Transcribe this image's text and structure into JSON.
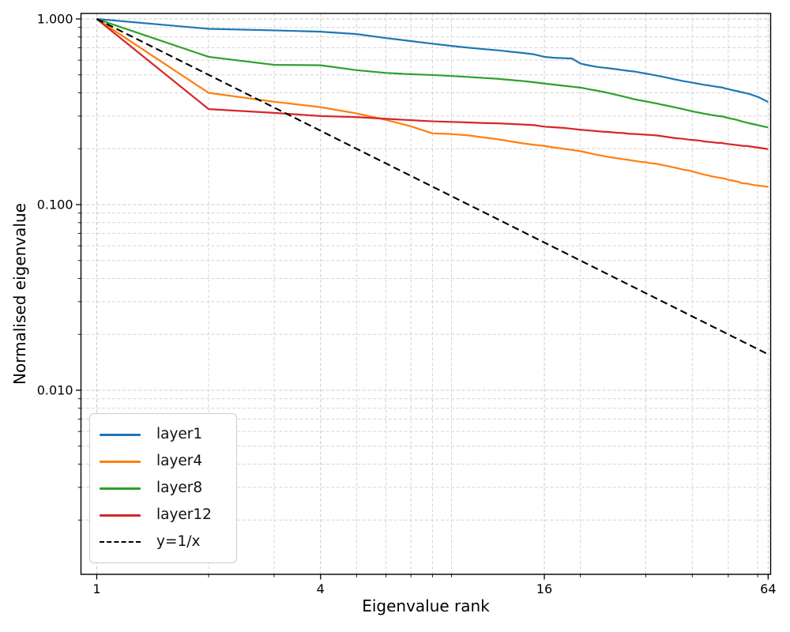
{
  "figure": {
    "xlabel": "Eigenvalue rank",
    "ylabel": "Normalised eigenvalue",
    "background": "#ffffff"
  },
  "axes": {
    "x": {
      "scale": "log",
      "major_ticks": [
        {
          "value": 1,
          "label": "1"
        },
        {
          "value": 4,
          "label": "4"
        },
        {
          "value": 16,
          "label": "16"
        },
        {
          "value": 64,
          "label": "64"
        }
      ],
      "minor_ticks": [
        2,
        3,
        5,
        6,
        7,
        8,
        9,
        20,
        30,
        40,
        50,
        60
      ]
    },
    "y": {
      "scale": "log",
      "major_ticks": [
        {
          "value": 1.0,
          "label": "1.000"
        },
        {
          "value": 0.1,
          "label": "0.100"
        },
        {
          "value": 0.01,
          "label": "0.010"
        }
      ],
      "minor_ticks": [
        0.9,
        0.8,
        0.7,
        0.6,
        0.5,
        0.4,
        0.3,
        0.2,
        0.09,
        0.08,
        0.07,
        0.06,
        0.05,
        0.04,
        0.03,
        0.02,
        0.009,
        0.008,
        0.007,
        0.006,
        0.005,
        0.004,
        0.003,
        0.002
      ]
    },
    "grid_color": "#d4d4d4",
    "spine_color": "#000000"
  },
  "chart_data": {
    "type": "line",
    "title": "",
    "xlabel": "Eigenvalue rank",
    "ylabel": "Normalised eigenvalue",
    "x_scale": "log",
    "y_scale": "log",
    "xlim": [
      0.907,
      65.0
    ],
    "ylim": [
      0.00102,
      1.071
    ],
    "grid": "both, dashed light gray",
    "legend_position": "lower left",
    "x": [
      1,
      2,
      3,
      4,
      5,
      6,
      7,
      8,
      9,
      10,
      11,
      12,
      13,
      14,
      15,
      16,
      17,
      18,
      19,
      20,
      21,
      22,
      23,
      24,
      25,
      26,
      27,
      28,
      29,
      30,
      31,
      32,
      33,
      34,
      35,
      36,
      37,
      38,
      39,
      40,
      41,
      42,
      43,
      44,
      45,
      46,
      47,
      48,
      49,
      50,
      51,
      52,
      53,
      54,
      55,
      56,
      57,
      58,
      59,
      60,
      61,
      62,
      63,
      64
    ],
    "series": [
      {
        "name": "layer1",
        "color": "#1f77b4",
        "dashed": false,
        "values": [
          1.0,
          0.885,
          0.868,
          0.854,
          0.829,
          0.789,
          0.76,
          0.736,
          0.716,
          0.7,
          0.688,
          0.678,
          0.666,
          0.656,
          0.645,
          0.625,
          0.618,
          0.615,
          0.612,
          0.575,
          0.563,
          0.553,
          0.547,
          0.542,
          0.536,
          0.53,
          0.525,
          0.521,
          0.514,
          0.508,
          0.502,
          0.496,
          0.49,
          0.484,
          0.478,
          0.472,
          0.467,
          0.462,
          0.458,
          0.454,
          0.45,
          0.446,
          0.442,
          0.439,
          0.436,
          0.433,
          0.43,
          0.428,
          0.423,
          0.419,
          0.415,
          0.411,
          0.408,
          0.404,
          0.401,
          0.398,
          0.394,
          0.39,
          0.385,
          0.381,
          0.375,
          0.369,
          0.363,
          0.357
        ]
      },
      {
        "name": "layer4",
        "color": "#ff7f0e",
        "dashed": false,
        "values": [
          1.0,
          0.4,
          0.358,
          0.335,
          0.31,
          0.286,
          0.264,
          0.242,
          0.24,
          0.236,
          0.23,
          0.225,
          0.219,
          0.214,
          0.21,
          0.207,
          0.203,
          0.2,
          0.197,
          0.194,
          0.19,
          0.186,
          0.183,
          0.18,
          0.178,
          0.176,
          0.174,
          0.172,
          0.17,
          0.169,
          0.167,
          0.166,
          0.164,
          0.162,
          0.16,
          0.158,
          0.156,
          0.154,
          0.153,
          0.151,
          0.149,
          0.147,
          0.145,
          0.144,
          0.142,
          0.141,
          0.14,
          0.139,
          0.138,
          0.136,
          0.135,
          0.134,
          0.133,
          0.131,
          0.13,
          0.13,
          0.129,
          0.128,
          0.127,
          0.127,
          0.126,
          0.126,
          0.125,
          0.125
        ]
      },
      {
        "name": "layer8",
        "color": "#2ca02c",
        "dashed": false,
        "values": [
          1.0,
          0.625,
          0.566,
          0.563,
          0.53,
          0.512,
          0.504,
          0.499,
          0.493,
          0.487,
          0.481,
          0.476,
          0.469,
          0.463,
          0.456,
          0.449,
          0.443,
          0.437,
          0.432,
          0.427,
          0.419,
          0.412,
          0.405,
          0.398,
          0.39,
          0.383,
          0.376,
          0.369,
          0.364,
          0.36,
          0.355,
          0.351,
          0.346,
          0.342,
          0.338,
          0.334,
          0.33,
          0.326,
          0.322,
          0.318,
          0.315,
          0.312,
          0.309,
          0.307,
          0.304,
          0.302,
          0.3,
          0.299,
          0.296,
          0.293,
          0.29,
          0.288,
          0.285,
          0.282,
          0.279,
          0.277,
          0.274,
          0.272,
          0.27,
          0.268,
          0.266,
          0.264,
          0.262,
          0.261
        ]
      },
      {
        "name": "layer12",
        "color": "#d62728",
        "dashed": false,
        "values": [
          1.0,
          0.327,
          0.312,
          0.3,
          0.296,
          0.29,
          0.285,
          0.281,
          0.279,
          0.277,
          0.275,
          0.274,
          0.272,
          0.27,
          0.268,
          0.263,
          0.261,
          0.259,
          0.256,
          0.253,
          0.251,
          0.249,
          0.247,
          0.246,
          0.244,
          0.243,
          0.241,
          0.24,
          0.239,
          0.238,
          0.237,
          0.236,
          0.234,
          0.232,
          0.23,
          0.228,
          0.227,
          0.226,
          0.224,
          0.223,
          0.222,
          0.221,
          0.219,
          0.218,
          0.217,
          0.216,
          0.215,
          0.215,
          0.213,
          0.212,
          0.211,
          0.21,
          0.209,
          0.208,
          0.207,
          0.207,
          0.206,
          0.205,
          0.204,
          0.203,
          0.202,
          0.201,
          0.2,
          0.199
        ]
      },
      {
        "name": "y=1/x",
        "color": "#000000",
        "dashed": true,
        "values": [
          1.0,
          0.5,
          0.33333,
          0.25,
          0.2,
          0.16667,
          0.14286,
          0.125,
          0.11111,
          0.1,
          0.09091,
          0.08333,
          0.07692,
          0.07143,
          0.06667,
          0.0625,
          0.05882,
          0.05556,
          0.05263,
          0.05,
          0.04762,
          0.04545,
          0.04348,
          0.04167,
          0.04,
          0.03846,
          0.03704,
          0.03571,
          0.03448,
          0.03333,
          0.03226,
          0.03125,
          0.0303,
          0.02941,
          0.02857,
          0.02778,
          0.02703,
          0.02632,
          0.02564,
          0.025,
          0.02439,
          0.02381,
          0.02326,
          0.02273,
          0.02222,
          0.02174,
          0.02128,
          0.02083,
          0.02041,
          0.02,
          0.01961,
          0.01923,
          0.01887,
          0.01852,
          0.01818,
          0.01786,
          0.01754,
          0.01724,
          0.01695,
          0.01667,
          0.01639,
          0.01613,
          0.01587,
          0.01563
        ]
      }
    ]
  }
}
